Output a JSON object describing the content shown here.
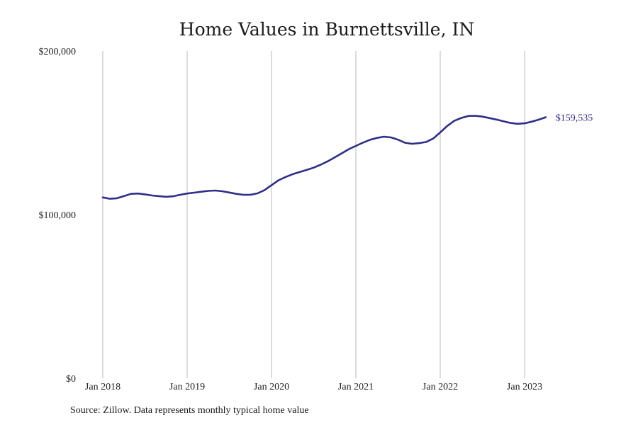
{
  "chart_data": {
    "type": "line",
    "title": "Home Values in Burnettsville, IN",
    "xlabel": "",
    "ylabel": "",
    "x_ticks": [
      "Jan 2018",
      "Jan 2019",
      "Jan 2020",
      "Jan 2021",
      "Jan 2022",
      "Jan 2023"
    ],
    "y_ticks": [
      "$0",
      "$100,000",
      "$200,000"
    ],
    "ylim": [
      0,
      200000
    ],
    "xlim": [
      "2018-01",
      "2023-04"
    ],
    "grid": "vertical",
    "series": [
      {
        "color": "#2e2e8a",
        "x": [
          "2018-01",
          "2018-02",
          "2018-03",
          "2018-04",
          "2018-05",
          "2018-06",
          "2018-07",
          "2018-08",
          "2018-09",
          "2018-10",
          "2018-11",
          "2018-12",
          "2019-01",
          "2019-02",
          "2019-03",
          "2019-04",
          "2019-05",
          "2019-06",
          "2019-07",
          "2019-08",
          "2019-09",
          "2019-10",
          "2019-11",
          "2019-12",
          "2020-01",
          "2020-02",
          "2020-03",
          "2020-04",
          "2020-05",
          "2020-06",
          "2020-07",
          "2020-08",
          "2020-09",
          "2020-10",
          "2020-11",
          "2020-12",
          "2021-01",
          "2021-02",
          "2021-03",
          "2021-04",
          "2021-05",
          "2021-06",
          "2021-07",
          "2021-08",
          "2021-09",
          "2021-10",
          "2021-11",
          "2021-12",
          "2022-01",
          "2022-02",
          "2022-03",
          "2022-04",
          "2022-05",
          "2022-06",
          "2022-07",
          "2022-08",
          "2022-09",
          "2022-10",
          "2022-11",
          "2022-12",
          "2023-01",
          "2023-02",
          "2023-03",
          "2023-04"
        ],
        "values": [
          110500,
          109700,
          110000,
          111300,
          112700,
          112900,
          112400,
          111700,
          111300,
          110900,
          111200,
          112100,
          112900,
          113400,
          114000,
          114500,
          114700,
          114300,
          113500,
          112700,
          112100,
          112100,
          113000,
          115000,
          118000,
          121000,
          123000,
          124700,
          126000,
          127300,
          128700,
          130500,
          132600,
          135000,
          137500,
          140000,
          142000,
          144000,
          145700,
          146900,
          147600,
          147200,
          145800,
          143900,
          143300,
          143700,
          144400,
          146500,
          150200,
          154200,
          157300,
          159100,
          160300,
          160400,
          159900,
          159000,
          158100,
          157000,
          156000,
          155500,
          155800,
          156800,
          158000,
          159535
        ]
      }
    ],
    "end_label": "$159,535",
    "source": "Source: Zillow. Data represents monthly typical home value"
  }
}
